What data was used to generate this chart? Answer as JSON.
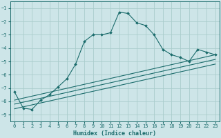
{
  "xlabel": "Humidex (Indice chaleur)",
  "bg_color": "#cde5e8",
  "grid_color": "#aacccc",
  "line_color": "#1a6b6b",
  "xlim": [
    -0.5,
    23.5
  ],
  "ylim": [
    -9.5,
    -0.5
  ],
  "yticks": [
    -1,
    -2,
    -3,
    -4,
    -5,
    -6,
    -7,
    -8,
    -9
  ],
  "xticks": [
    0,
    1,
    2,
    3,
    4,
    5,
    6,
    7,
    8,
    9,
    10,
    11,
    12,
    13,
    14,
    15,
    16,
    17,
    18,
    19,
    20,
    21,
    22,
    23
  ],
  "line1_x": [
    0,
    1,
    2,
    3,
    4,
    5,
    6,
    7,
    8,
    9,
    10,
    11,
    12,
    13,
    14,
    15,
    16,
    17,
    18,
    19,
    20,
    21,
    22,
    23
  ],
  "line1_y": [
    -7.3,
    -8.5,
    -8.6,
    -7.9,
    -7.5,
    -6.9,
    -6.3,
    -5.2,
    -3.5,
    -3.0,
    -3.0,
    -2.85,
    -1.3,
    -1.4,
    -2.1,
    -2.3,
    -3.0,
    -4.1,
    -4.5,
    -4.7,
    -5.0,
    -4.1,
    -4.3,
    -4.5
  ],
  "line2_x": [
    0,
    23
  ],
  "line2_y": [
    -7.9,
    -4.5
  ],
  "line3_x": [
    0,
    23
  ],
  "line3_y": [
    -8.2,
    -4.85
  ],
  "line4_x": [
    0,
    23
  ],
  "line4_y": [
    -8.55,
    -5.2
  ],
  "tick_fontsize": 5.0,
  "xlabel_fontsize": 6.0
}
